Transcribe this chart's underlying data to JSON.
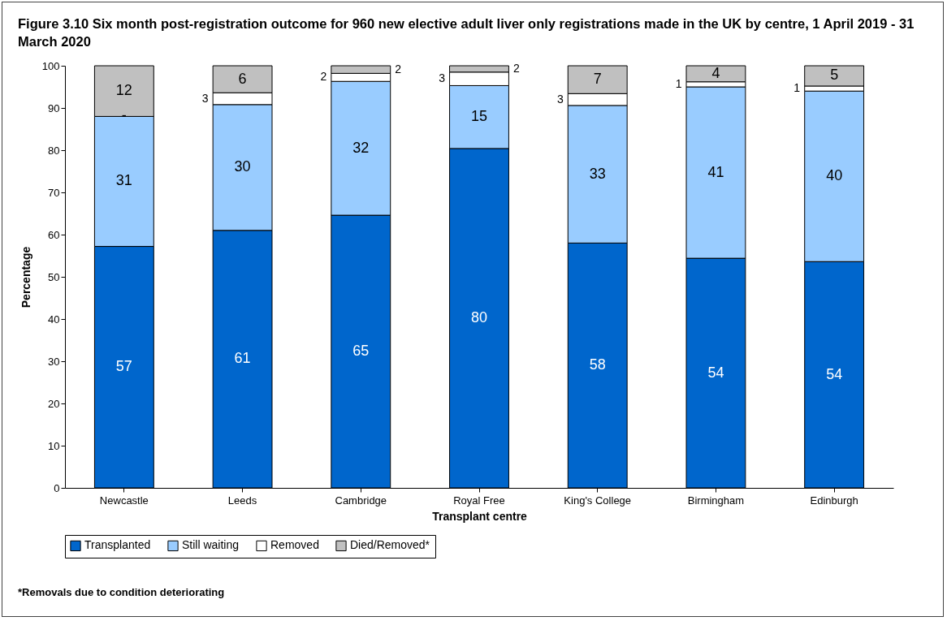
{
  "chart_data": {
    "type": "bar",
    "stacked": true,
    "title": "Figure 3.10 Six month post-registration outcome for 960 new elective adult liver only registrations made in the UK by centre, 1 April 2019 - 31 March 2020",
    "xlabel": "Transplant centre",
    "ylabel": "Percentage",
    "categories": [
      "Newcastle",
      "Leeds",
      "Cambridge",
      "Royal Free",
      "King's College",
      "Birmingham",
      "Edinburgh"
    ],
    "series": [
      {
        "name": "Transplanted",
        "color": "#0066cc",
        "values": [
          57.2,
          61,
          64.6,
          80.4,
          58,
          54.4,
          53.6
        ],
        "value_labels": [
          "57",
          "61",
          "65",
          "80",
          "58",
          "54",
          "54"
        ]
      },
      {
        "name": "Still waiting",
        "color": "#99ccff",
        "values": [
          30.8,
          29.8,
          31.7,
          14.9,
          32.6,
          40.6,
          40.4
        ],
        "value_labels": [
          "31",
          "30",
          "32",
          "15",
          "33",
          "41",
          "40"
        ]
      },
      {
        "name": "Removed",
        "color": "#ffffff",
        "values": [
          0,
          2.8,
          1.9,
          3.2,
          2.8,
          1.2,
          1.2
        ],
        "value_labels": [
          "-",
          "3",
          "2",
          "3",
          "3",
          "1",
          "1"
        ]
      },
      {
        "name": "Died/Removed*",
        "color": "#c0c0c0",
        "values": [
          12,
          6.4,
          1.8,
          1.5,
          6.6,
          3.8,
          4.8
        ],
        "value_labels": [
          "12",
          "6",
          "2",
          "2",
          "7",
          "4",
          "5"
        ]
      }
    ],
    "ylim": [
      0,
      100
    ],
    "yticks": [
      0,
      10,
      20,
      30,
      40,
      50,
      60,
      70,
      80,
      90,
      100
    ],
    "grid": false,
    "legend": "bottom",
    "annotations": [
      "*Removals due to condition deteriorating"
    ]
  }
}
